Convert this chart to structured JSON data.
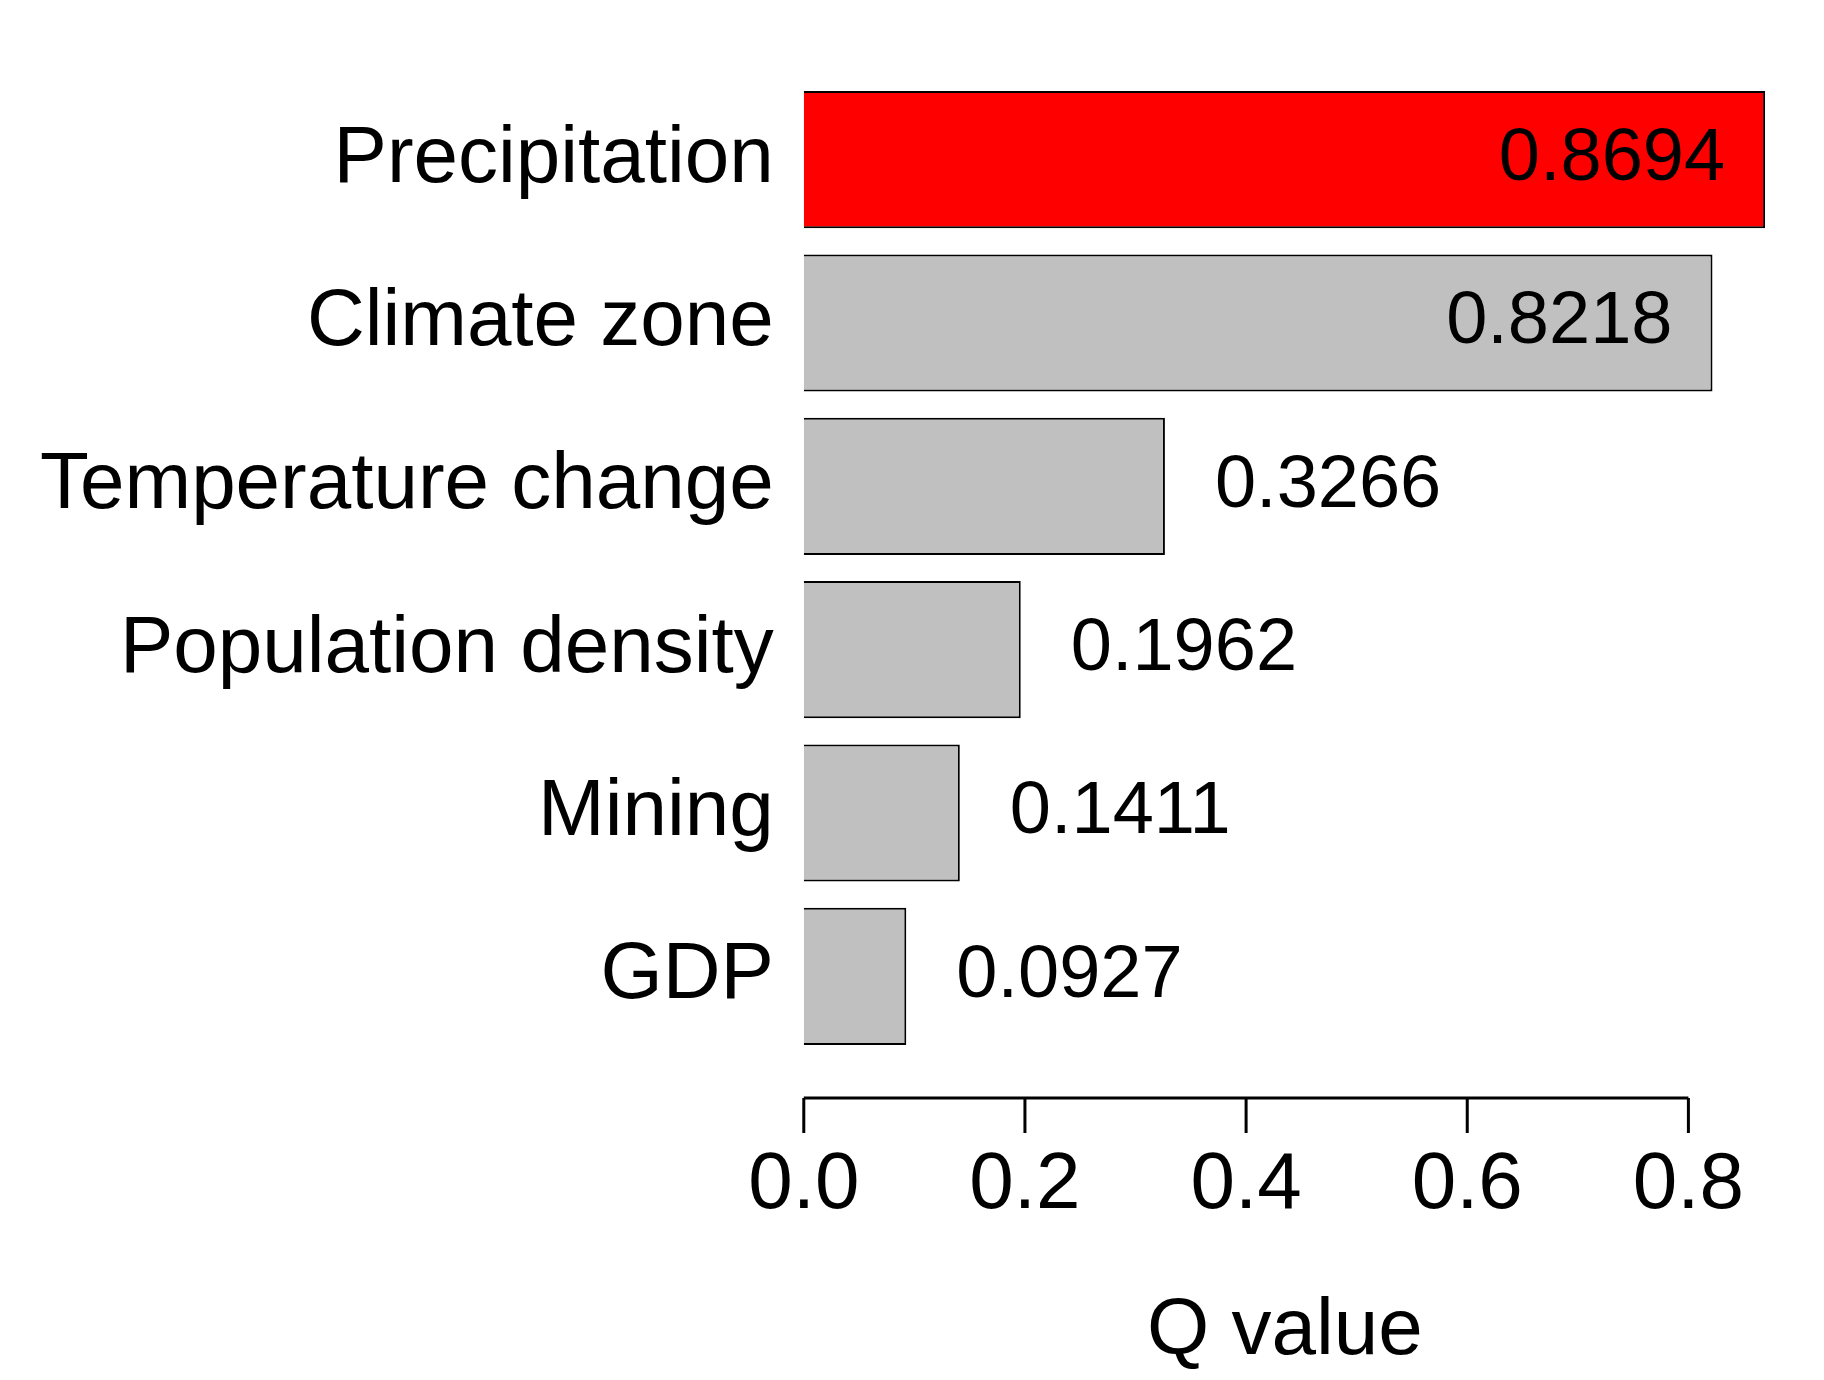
{
  "chart_data": {
    "type": "bar",
    "orientation": "horizontal",
    "xlabel": "Q value",
    "categories": [
      "Precipitation",
      "Climate zone",
      "Temperature change",
      "Population density",
      "Mining",
      "GDP"
    ],
    "values": [
      0.8694,
      0.8218,
      0.3266,
      0.1962,
      0.1411,
      0.0927
    ],
    "colors": [
      "#ff0000",
      "#c0c0c0",
      "#c0c0c0",
      "#c0c0c0",
      "#c0c0c0",
      "#c0c0c0"
    ],
    "xlim": [
      0,
      0.87
    ],
    "xticks": [
      {
        "value": 0,
        "label": "0.0"
      },
      0.2,
      0.4,
      0.6,
      0.8
    ],
    "data_labels": true,
    "grid": false,
    "legend": false
  }
}
